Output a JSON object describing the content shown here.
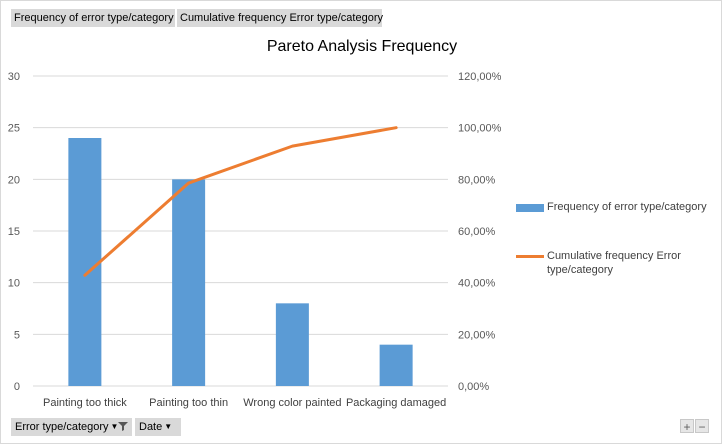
{
  "field_buttons": {
    "series1": "Frequency of error type/category",
    "series2": "Cumulative frequency Error type/category"
  },
  "axis_buttons": {
    "category_field": "Error type/category",
    "date_field": "Date"
  },
  "zoom": {
    "plus": "+",
    "minus": "−"
  },
  "colors": {
    "bar": "#5b9bd5",
    "line": "#ed7d31",
    "grid": "#d9d9d9"
  },
  "chart_data": {
    "type": "bar",
    "title": "Pareto Analysis Frequency",
    "categories": [
      "Painting too thick",
      "Painting too thin",
      "Wrong color painted",
      "Packaging damaged"
    ],
    "series": [
      {
        "name": "Frequency of error type/category",
        "type": "bar",
        "axis": "primary",
        "values": [
          24,
          20,
          8,
          4
        ]
      },
      {
        "name": "Cumulative frequency Error type/category",
        "type": "line",
        "axis": "secondary",
        "values": [
          0.4286,
          0.7857,
          0.9286,
          1.0
        ]
      }
    ],
    "ylim": [
      0,
      30
    ],
    "yticks": [
      "0",
      "5",
      "10",
      "15",
      "20",
      "25",
      "30"
    ],
    "y2lim": [
      0,
      1.2
    ],
    "y2ticks": [
      "0,00%",
      "20,00%",
      "40,00%",
      "60,00%",
      "80,00%",
      "100,00%",
      "120,00%"
    ],
    "grid": true,
    "legend": "right"
  }
}
